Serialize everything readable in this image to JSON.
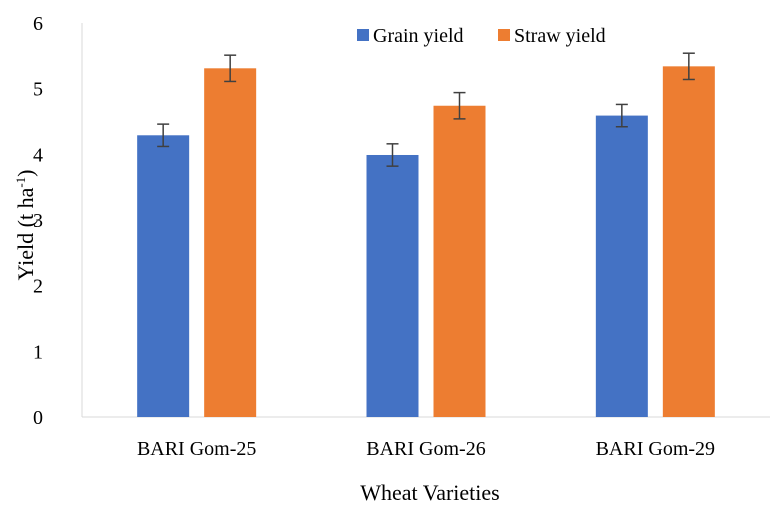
{
  "chart_data": {
    "type": "bar",
    "categories": [
      "BARI Gom-25",
      "BARI Gom-26",
      "BARI Gom-29"
    ],
    "series": [
      {
        "name": "Grain yield",
        "color": "#4472c4",
        "values": [
          4.29,
          3.99,
          4.59
        ],
        "errors": [
          0.17,
          0.17,
          0.17
        ]
      },
      {
        "name": "Straw yield",
        "color": "#ed7d31",
        "values": [
          5.31,
          4.74,
          5.34
        ],
        "errors": [
          0.2,
          0.2,
          0.2
        ]
      }
    ],
    "title": "",
    "xlabel": "Wheat Varieties",
    "ylabel": {
      "main": "Yield (t ha",
      "superscript": "-1",
      "close": ")"
    },
    "ylim": [
      0,
      6
    ],
    "yticks": [
      0,
      1,
      2,
      3,
      4,
      5,
      6
    ],
    "grid": false,
    "legend_position": "top-right",
    "axis_color": "#d9d9d9",
    "error_bar_color": "#404040"
  }
}
